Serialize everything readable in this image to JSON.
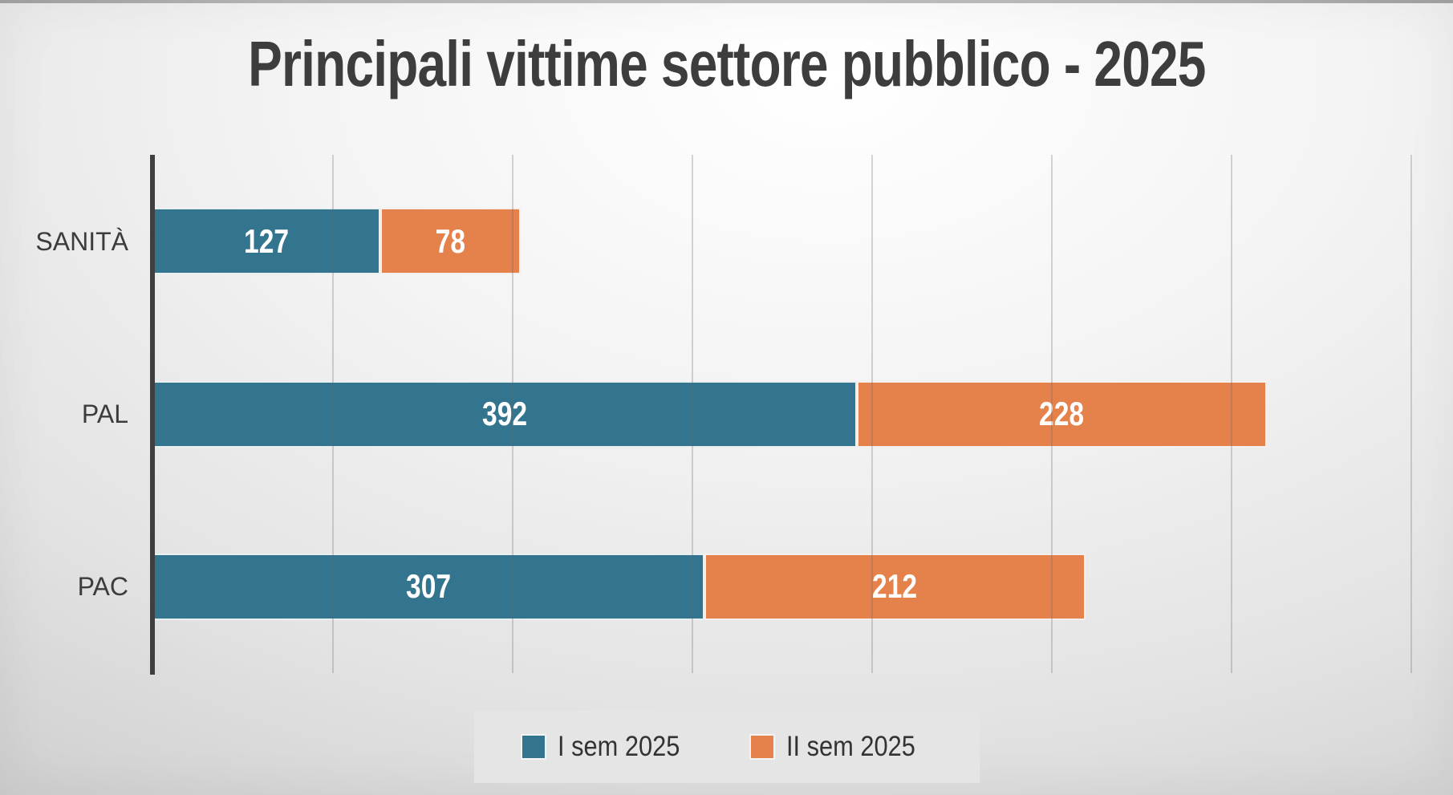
{
  "title": "Principali vittime settore pubblico - 2025",
  "chart_data": {
    "type": "bar",
    "orientation": "horizontal",
    "stacked": true,
    "title": "Principali vittime settore pubblico - 2025",
    "categories": [
      "SANITÀ",
      "PAL",
      "PAC"
    ],
    "series": [
      {
        "name": "I sem 2025",
        "color": "#33748f",
        "values": [
          127,
          392,
          307
        ]
      },
      {
        "name": "II sem 2025",
        "color": "#e5814a",
        "values": [
          78,
          228,
          212
        ]
      }
    ],
    "totals": [
      205,
      620,
      519
    ],
    "xlabel": "",
    "ylabel": "",
    "xlim": [
      0,
      700
    ],
    "grid_interval": 100,
    "grid": "vertical",
    "legend_position": "bottom-center",
    "value_labels": "inside-center",
    "value_label_color": "#ffffff"
  },
  "colors": {
    "series1": "#33748f",
    "series2": "#e5814a",
    "title_text": "#3d3d3d",
    "category_text": "#3c3c3c",
    "axis_line": "#3f3f3f",
    "gridline": "#c9c9c9",
    "legend_background": "#e5e5e5",
    "background_center": "#ffffff",
    "background_corner": "#bfbfbf"
  }
}
